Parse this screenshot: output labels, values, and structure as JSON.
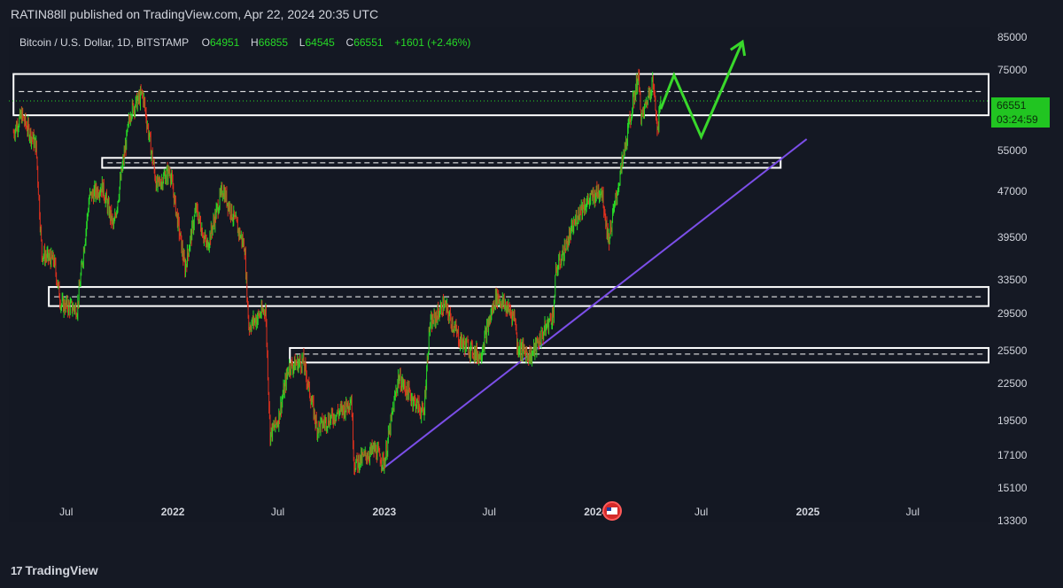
{
  "header": {
    "published": "RATIN88ll published on TradingView.com, Apr 22, 2024 20:35 UTC"
  },
  "legend": {
    "symbol": "Bitcoin / U.S. Dollar, 1D, BITSTAMP",
    "o_label": "O",
    "open": "64951",
    "h_label": "H",
    "high": "66855",
    "l_label": "L",
    "low": "64545",
    "c_label": "C",
    "close": "66551",
    "change": "+1601 (+2.46%)"
  },
  "price_tag": {
    "price": "66551",
    "countdown": "03:24:59"
  },
  "footer": {
    "brand": "TradingView"
  },
  "colors": {
    "up": "#26d926",
    "down": "#e0301e",
    "trendline": "#7b4ee8",
    "projection": "#39d82b",
    "zone": "#ffffff"
  },
  "chart_data": {
    "type": "candlestick",
    "title": "Bitcoin / U.S. Dollar, 1D, BITSTAMP",
    "y_scale": "log",
    "ylim": [
      13300,
      85000
    ],
    "y_ticks": [
      85000,
      75000,
      55000,
      47000,
      39500,
      33500,
      29500,
      25500,
      22500,
      19500,
      17100,
      15100,
      13300
    ],
    "x_ticks": [
      "Jul",
      "2022",
      "Jul",
      "2023",
      "Jul",
      "2024",
      "Jul",
      "2025",
      "Jul"
    ],
    "x_tick_dates": [
      "2021-07-01",
      "2022-01-01",
      "2022-07-01",
      "2023-01-01",
      "2023-07-01",
      "2024-01-01",
      "2024-07-01",
      "2025-01-01",
      "2025-07-01"
    ],
    "price_path": [
      [
        "2021-04-01",
        59000
      ],
      [
        "2021-04-15",
        63000
      ],
      [
        "2021-05-10",
        56000
      ],
      [
        "2021-05-20",
        37000
      ],
      [
        "2021-06-10",
        36000
      ],
      [
        "2021-06-22",
        30500
      ],
      [
        "2021-07-20",
        30000
      ],
      [
        "2021-08-10",
        46000
      ],
      [
        "2021-09-01",
        48000
      ],
      [
        "2021-09-21",
        41000
      ],
      [
        "2021-10-20",
        64000
      ],
      [
        "2021-11-10",
        68500
      ],
      [
        "2021-12-04",
        48000
      ],
      [
        "2021-12-27",
        51000
      ],
      [
        "2022-01-22",
        35000
      ],
      [
        "2022-02-10",
        44000
      ],
      [
        "2022-03-01",
        38000
      ],
      [
        "2022-03-28",
        47500
      ],
      [
        "2022-05-05",
        38000
      ],
      [
        "2022-05-12",
        28000
      ],
      [
        "2022-06-10",
        30000
      ],
      [
        "2022-06-18",
        18500
      ],
      [
        "2022-07-01",
        19500
      ],
      [
        "2022-07-20",
        24000
      ],
      [
        "2022-08-14",
        24500
      ],
      [
        "2022-09-07",
        19000
      ],
      [
        "2022-10-25",
        20500
      ],
      [
        "2022-11-05",
        21300
      ],
      [
        "2022-11-10",
        16500
      ],
      [
        "2022-12-15",
        17500
      ],
      [
        "2023-01-01",
        16600
      ],
      [
        "2023-01-25",
        23000
      ],
      [
        "2023-03-10",
        20000
      ],
      [
        "2023-03-20",
        28000
      ],
      [
        "2023-04-14",
        30500
      ],
      [
        "2023-05-12",
        26500
      ],
      [
        "2023-06-15",
        25000
      ],
      [
        "2023-07-13",
        31500
      ],
      [
        "2023-08-15",
        29000
      ],
      [
        "2023-08-18",
        26000
      ],
      [
        "2023-09-11",
        25000
      ],
      [
        "2023-10-20",
        29500
      ],
      [
        "2023-10-24",
        34500
      ],
      [
        "2023-12-05",
        44000
      ],
      [
        "2024-01-11",
        47500
      ],
      [
        "2024-01-23",
        39000
      ],
      [
        "2024-02-15",
        52000
      ],
      [
        "2024-03-14",
        73500
      ],
      [
        "2024-03-20",
        62000
      ],
      [
        "2024-04-08",
        72000
      ],
      [
        "2024-04-17",
        60000
      ],
      [
        "2024-04-22",
        66551
      ]
    ],
    "zones": [
      {
        "low": 63000,
        "high": 73800,
        "dashed_mid": 69000,
        "start": "2021-04-01"
      },
      {
        "low": 51500,
        "high": 53500,
        "dashed_mid": 52500,
        "start": "2021-09-01",
        "end": "2024-11-15"
      },
      {
        "low": 30300,
        "high": 32600,
        "dashed_mid": 31400,
        "start": "2021-06-01"
      },
      {
        "low": 24400,
        "high": 25800,
        "dashed_mid": 25200,
        "start": "2022-07-22"
      }
    ],
    "trendline": {
      "from": [
        "2022-12-28",
        16200
      ],
      "to": [
        "2024-12-30",
        57500
      ]
    },
    "projection": [
      [
        "2024-04-22",
        64500
      ],
      [
        "2024-05-15",
        73500
      ],
      [
        "2024-07-01",
        58000
      ],
      [
        "2024-09-10",
        83500
      ]
    ],
    "grid": false
  }
}
